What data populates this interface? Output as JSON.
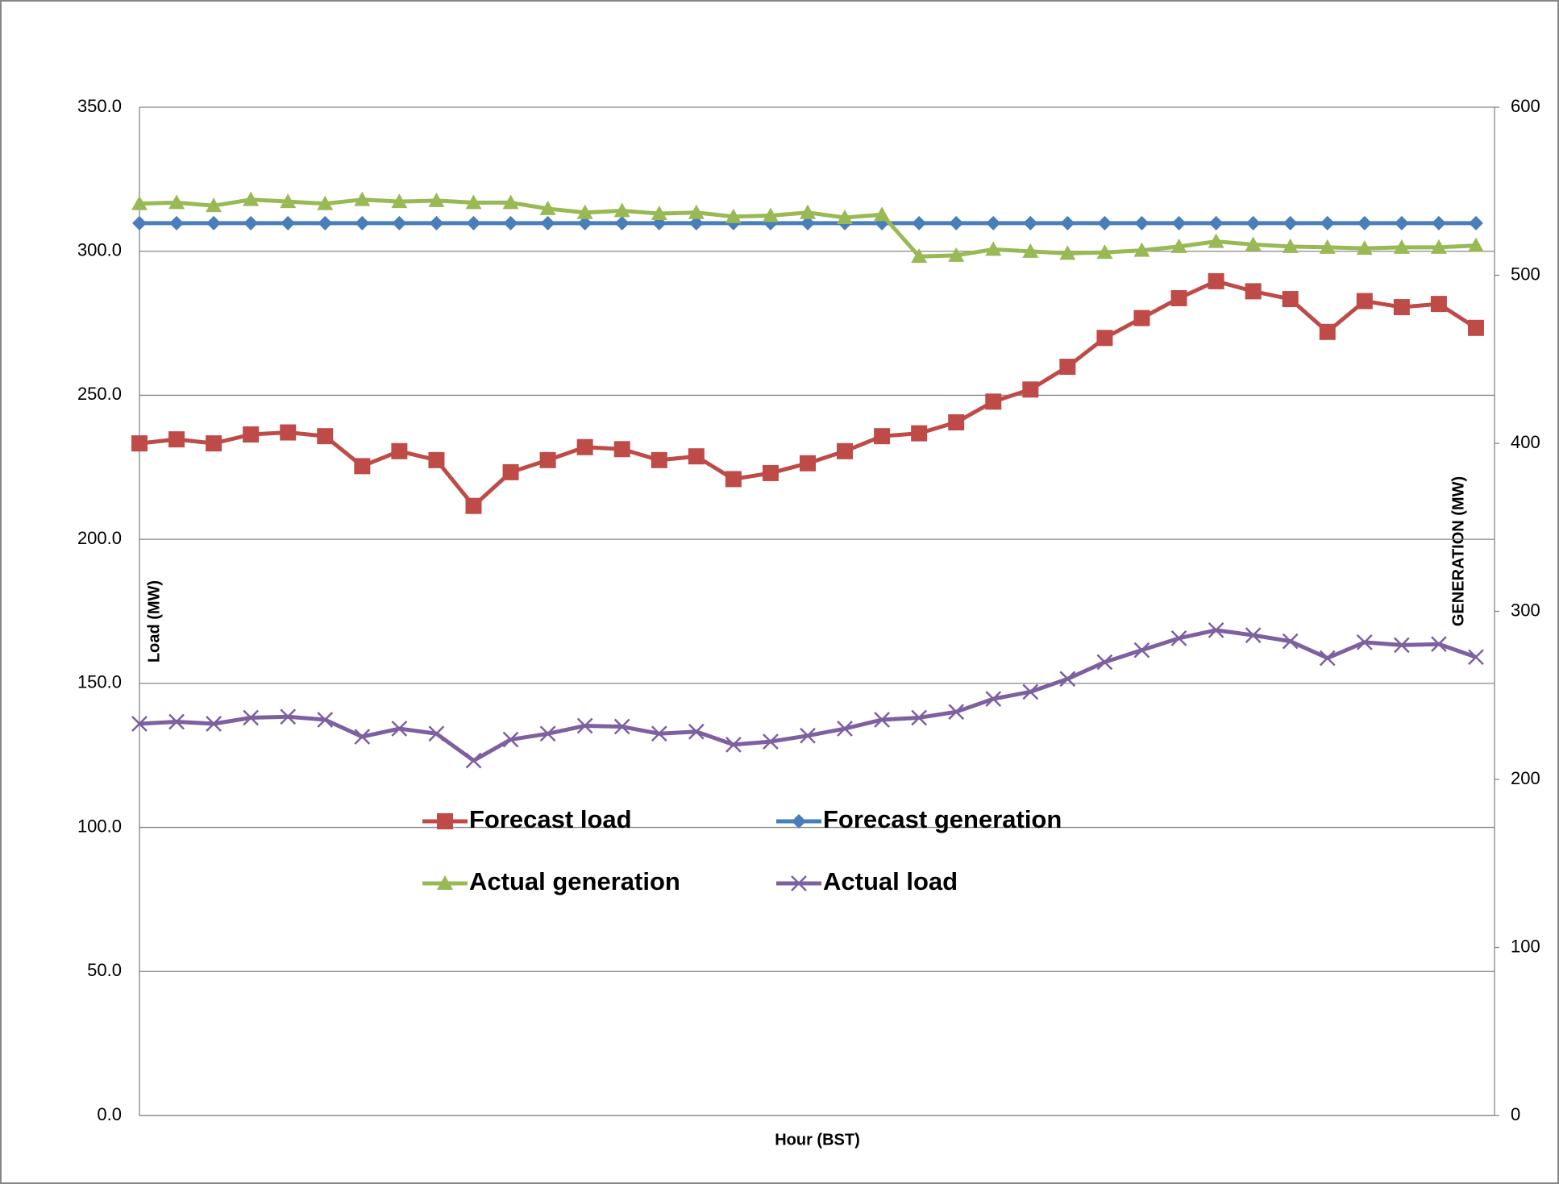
{
  "chart_data": {
    "type": "line",
    "x_label": "Hour (BST)",
    "y_label": "Load (MW)",
    "y2_label": "GENERATION (MW)",
    "categories": [
      null,
      null,
      null,
      null,
      null,
      null,
      null,
      null,
      null,
      null,
      null,
      null,
      null,
      null,
      null,
      null,
      null,
      null,
      null,
      null,
      null,
      null,
      null,
      null,
      null,
      null,
      null,
      null,
      null,
      null,
      null,
      null,
      null,
      null,
      null,
      null,
      null
    ],
    "ylim": [
      0,
      350
    ],
    "yticks": [
      {
        "value": 0,
        "label": "0.0"
      },
      {
        "value": 50,
        "label": "50.0"
      },
      {
        "value": 100,
        "label": "100.0"
      },
      {
        "value": 150,
        "label": "150.0"
      },
      {
        "value": 200,
        "label": "200.0"
      },
      {
        "value": 250,
        "label": "250.0"
      },
      {
        "value": 300,
        "label": "300.0"
      },
      {
        "value": 350,
        "label": "350.0"
      }
    ],
    "y2lim": [
      0,
      600
    ],
    "y2ticks": [
      0,
      100,
      200,
      300,
      400,
      500,
      600
    ],
    "grid": true,
    "series": [
      {
        "name": "Forecast load",
        "color": "#BE4B48",
        "marker": "square",
        "axis": "y",
        "values": [
          233.3,
          234.7,
          233.3,
          236.4,
          237.1,
          235.8,
          225.4,
          230.6,
          227.5,
          211.6,
          223.3,
          227.5,
          232.0,
          231.3,
          227.5,
          228.8,
          220.9,
          223.0,
          226.4,
          230.6,
          235.8,
          236.8,
          240.6,
          247.8,
          252.0,
          259.9,
          269.9,
          276.8,
          283.7,
          289.6,
          286.1,
          283.4,
          272.0,
          282.7,
          280.6,
          281.7,
          273.4
        ]
      },
      {
        "name": "Forecast generation",
        "color": "#4A7EBB",
        "marker": "diamond",
        "axis": "y2",
        "values": [
          531,
          531,
          531,
          531,
          531,
          531,
          531,
          531,
          531,
          531,
          531,
          531,
          531,
          531,
          531,
          531,
          531,
          531,
          531,
          531,
          531,
          531,
          531,
          531,
          531,
          531,
          531,
          531,
          531,
          531,
          531,
          531,
          531,
          531,
          531,
          531,
          531
        ]
      },
      {
        "name": "Actual generation",
        "color": "#98B954",
        "marker": "triangle",
        "axis": "y2",
        "values": [
          542.6,
          543.2,
          541.4,
          545.0,
          543.8,
          542.6,
          545.0,
          543.8,
          544.4,
          543.2,
          543.2,
          539.6,
          537.3,
          538.4,
          536.7,
          537.3,
          534.9,
          535.5,
          537.3,
          534.3,
          536.1,
          511.2,
          511.8,
          515.4,
          514.2,
          513.0,
          513.6,
          514.8,
          517.1,
          520.1,
          518.3,
          517.1,
          516.6,
          516.0,
          516.6,
          516.6,
          517.7
        ]
      },
      {
        "name": "Actual load",
        "color": "#7D60A0",
        "marker": "x",
        "axis": "y2",
        "values": [
          233.1,
          234.3,
          233.1,
          236.7,
          237.3,
          235.5,
          225.4,
          230.2,
          227.2,
          211.2,
          223.7,
          227.2,
          231.9,
          231.4,
          227.2,
          228.4,
          220.7,
          222.5,
          226.0,
          230.2,
          235.5,
          236.7,
          240.2,
          247.9,
          252.1,
          259.8,
          269.8,
          276.9,
          284.0,
          288.8,
          285.8,
          282.2,
          272.2,
          281.6,
          279.9,
          280.5,
          272.8
        ]
      }
    ]
  }
}
